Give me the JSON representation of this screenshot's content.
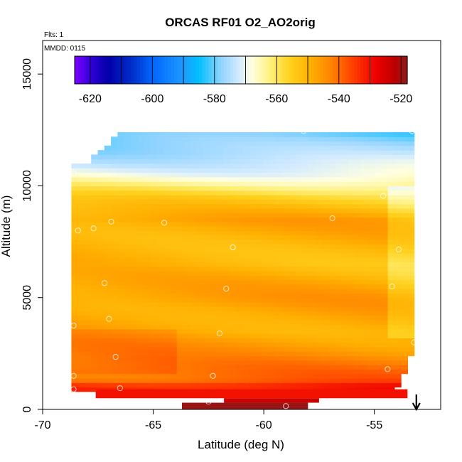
{
  "chart_data": {
    "type": "heatmap",
    "title": "ORCAS RF01 O2_AO2orig",
    "flights_label": "Flts: 1",
    "date_label": "MMDD: 0115",
    "xlabel": "Latitude (deg N)",
    "ylabel": "Altitude (m)",
    "xlim": [
      -70,
      -52
    ],
    "ylim": [
      0,
      16500
    ],
    "x_ticks": [
      -70,
      -65,
      -60,
      -55
    ],
    "x_tick_labels": [
      "-70",
      "-65",
      "-60",
      "-55"
    ],
    "y_ticks": [
      0,
      5000,
      10000,
      15000
    ],
    "y_tick_labels": [
      "0",
      "5000",
      "10000",
      "15000"
    ],
    "colorbar": {
      "range": [
        -625,
        -518
      ],
      "ticks": [
        -620,
        -600,
        -580,
        -560,
        -540,
        -520
      ],
      "tick_labels": [
        "-620",
        "-600",
        "-580",
        "-560",
        "-540",
        "-520"
      ],
      "stops": [
        {
          "v": -625,
          "c": "#7f00ff"
        },
        {
          "v": -620,
          "c": "#3300d9"
        },
        {
          "v": -614,
          "c": "#0000a8"
        },
        {
          "v": -606,
          "c": "#0033cc"
        },
        {
          "v": -600,
          "c": "#0066ff"
        },
        {
          "v": -590,
          "c": "#1e9bff"
        },
        {
          "v": -585,
          "c": "#00bfff"
        },
        {
          "v": -578,
          "c": "#8fd3ff"
        },
        {
          "v": -572,
          "c": "#d3ebff"
        },
        {
          "v": -568,
          "c": "#ffffe0"
        },
        {
          "v": -562,
          "c": "#fff07a"
        },
        {
          "v": -556,
          "c": "#ffd21f"
        },
        {
          "v": -549,
          "c": "#ffaf00"
        },
        {
          "v": -542,
          "c": "#ff8000"
        },
        {
          "v": -535,
          "c": "#ff3a00"
        },
        {
          "v": -528,
          "c": "#ee0000"
        },
        {
          "v": -522,
          "c": "#bb0000"
        },
        {
          "v": -518,
          "c": "#8e1b1b"
        }
      ]
    },
    "field": {
      "lat_range": [
        -68.7,
        -53.2
      ],
      "alt_range": [
        800,
        12400
      ],
      "description_levels": [
        {
          "alt": 800,
          "value": -534
        },
        {
          "alt": 1500,
          "value": -540
        },
        {
          "alt": 2500,
          "value": -545
        },
        {
          "alt": 3500,
          "value": -548
        },
        {
          "alt": 5000,
          "value": -547
        },
        {
          "alt": 6500,
          "value": -551
        },
        {
          "alt": 8500,
          "value": -548
        },
        {
          "alt": 9500,
          "value": -556
        },
        {
          "alt": 10500,
          "value": -568
        },
        {
          "alt": 11500,
          "value": -576
        },
        {
          "alt": 12400,
          "value": -581
        }
      ]
    },
    "low_level_bands": [
      {
        "lat0": -67.6,
        "lat1": -53.5,
        "alt0": 500,
        "alt1": 900,
        "value": -530
      },
      {
        "lat0": -63.7,
        "lat1": -58.0,
        "alt0": 0,
        "alt1": 300,
        "value": -519
      },
      {
        "lat0": -61.8,
        "lat1": -57.5,
        "alt0": 300,
        "alt1": 500,
        "value": -524
      }
    ],
    "flight_points": [
      [
        -68.6,
        10550
      ],
      [
        -68.4,
        8000
      ],
      [
        -67.7,
        8100
      ],
      [
        -66.9,
        8400
      ],
      [
        -64.5,
        8350
      ],
      [
        -61.4,
        7250
      ],
      [
        -56.9,
        8550
      ],
      [
        -54.6,
        9550
      ],
      [
        -53.9,
        7150
      ],
      [
        -54.2,
        5500
      ],
      [
        -67.2,
        5650
      ],
      [
        -61.7,
        5400
      ],
      [
        -67.0,
        4050
      ],
      [
        -62.0,
        3400
      ],
      [
        -68.6,
        3750
      ],
      [
        -53.2,
        3000
      ],
      [
        -66.7,
        2350
      ],
      [
        -68.6,
        1500
      ],
      [
        -62.3,
        1500
      ],
      [
        -54.4,
        1800
      ],
      [
        -68.6,
        900
      ],
      [
        -66.5,
        950
      ],
      [
        -62.5,
        350
      ],
      [
        -59.0,
        150
      ],
      [
        -55.1,
        150
      ],
      [
        -67.1,
        12150
      ],
      [
        -58.2,
        12450
      ],
      [
        -53.3,
        12450
      ],
      [
        -68.9,
        5650
      ]
    ],
    "arrow": {
      "lat": -53.1,
      "direction": "down"
    }
  }
}
